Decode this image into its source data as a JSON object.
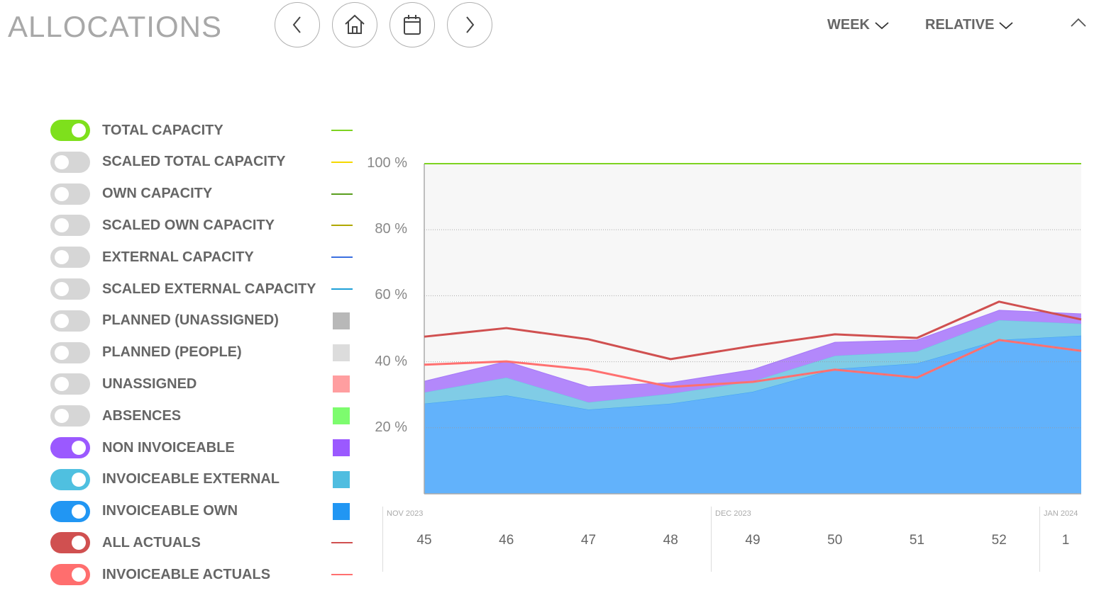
{
  "header": {
    "title": "ALLOCATIONS",
    "nav": [
      {
        "name": "previous-button",
        "icon": "chevron-left-icon"
      },
      {
        "name": "home-button",
        "icon": "home-icon"
      },
      {
        "name": "calendar-button",
        "icon": "calendar-icon"
      },
      {
        "name": "next-button",
        "icon": "chevron-right-icon"
      }
    ],
    "period_select": "WEEK",
    "mode_select": "RELATIVE",
    "collapse_icon": "chevron-up-icon"
  },
  "legend": [
    {
      "label": "TOTAL CAPACITY",
      "on": true,
      "toggle_color": "#7ee01c",
      "marker": "line",
      "color": "#7ed321"
    },
    {
      "label": "SCALED TOTAL CAPACITY",
      "on": false,
      "marker": "line",
      "color": "#f5d800"
    },
    {
      "label": "OWN CAPACITY",
      "on": false,
      "marker": "line",
      "color": "#5a9e1e"
    },
    {
      "label": "SCALED OWN CAPACITY",
      "on": false,
      "marker": "line",
      "color": "#b0a800"
    },
    {
      "label": "EXTERNAL CAPACITY",
      "on": false,
      "marker": "line",
      "color": "#3b6fe0"
    },
    {
      "label": "SCALED EXTERNAL CAPACITY",
      "on": false,
      "marker": "line",
      "color": "#1ea0d8"
    },
    {
      "label": "PLANNED (UNASSIGNED)",
      "on": false,
      "marker": "square",
      "color": "#b8b8b8"
    },
    {
      "label": "PLANNED (PEOPLE)",
      "on": false,
      "marker": "square",
      "color": "#dcdcdc"
    },
    {
      "label": "UNASSIGNED",
      "on": false,
      "marker": "square",
      "color": "#ff9ea0"
    },
    {
      "label": "ABSENCES",
      "on": false,
      "marker": "square",
      "color": "#7dfc6e"
    },
    {
      "label": "NON INVOICEABLE",
      "on": true,
      "toggle_color": "#9b59ff",
      "marker": "square",
      "color": "#9b59ff"
    },
    {
      "label": "INVOICEABLE EXTERNAL",
      "on": true,
      "toggle_color": "#4fc0e0",
      "marker": "square",
      "color": "#4fbde0"
    },
    {
      "label": "INVOICEABLE OWN",
      "on": true,
      "toggle_color": "#2196f3",
      "marker": "square",
      "color": "#2196f3"
    },
    {
      "label": "ALL ACTUALS",
      "on": true,
      "toggle_color": "#d05050",
      "marker": "line",
      "color": "#d05050"
    },
    {
      "label": "INVOICEABLE ACTUALS",
      "on": true,
      "toggle_color": "#ff6e6e",
      "marker": "line",
      "color": "#ff7070"
    }
  ],
  "chart_data": {
    "type": "area",
    "ylim": [
      0,
      100
    ],
    "yticks": [
      {
        "v": 20,
        "label": "20 %"
      },
      {
        "v": 40,
        "label": "40 %"
      },
      {
        "v": 60,
        "label": "60 %"
      },
      {
        "v": 80,
        "label": "80 %"
      },
      {
        "v": 100,
        "label": "100 %"
      }
    ],
    "grid": true,
    "months": [
      {
        "label": "NOV 2023",
        "at_week_index": 0
      },
      {
        "label": "DEC 2023",
        "at_week_index": 4
      },
      {
        "label": "JAN 2024",
        "at_week_index": 8
      }
    ],
    "categories": [
      "45",
      "46",
      "47",
      "48",
      "49",
      "50",
      "51",
      "52",
      "1"
    ],
    "stacked_areas": [
      {
        "name": "INVOICEABLE OWN",
        "color": "#62b2fb",
        "edge": "#3ea2f5",
        "values": [
          27.3,
          29.8,
          25.5,
          27.3,
          30.9,
          37.8,
          39.5,
          46.6,
          47.9
        ]
      },
      {
        "name": "INVOICEABLE EXTERNAL",
        "color": "#80cce6",
        "edge": "#6cc3e3",
        "values": [
          3.4,
          5.4,
          2.2,
          3.0,
          3.2,
          4.0,
          3.6,
          6.0,
          3.6
        ]
      },
      {
        "name": "NON INVOICEABLE",
        "color": "#b388fb",
        "edge": "#a577f8",
        "values": [
          3.4,
          4.9,
          4.7,
          3.4,
          3.5,
          4.1,
          3.5,
          3.0,
          3.0
        ]
      }
    ],
    "lines": [
      {
        "name": "TOTAL CAPACITY",
        "color": "#7ed321",
        "width": 2,
        "values": [
          100,
          100,
          100,
          100,
          100,
          100,
          100,
          100,
          100
        ]
      },
      {
        "name": "ALL ACTUALS",
        "color": "#d05050",
        "width": 3,
        "values": [
          47.6,
          50.2,
          46.8,
          40.8,
          44.8,
          48.3,
          47.2,
          58.2,
          52.8
        ]
      },
      {
        "name": "INVOICEABLE ACTUALS",
        "color": "#ff7070",
        "width": 3,
        "values": [
          39.1,
          40.1,
          37.6,
          32.4,
          33.9,
          37.6,
          35.2,
          46.6,
          43.3
        ]
      }
    ]
  }
}
